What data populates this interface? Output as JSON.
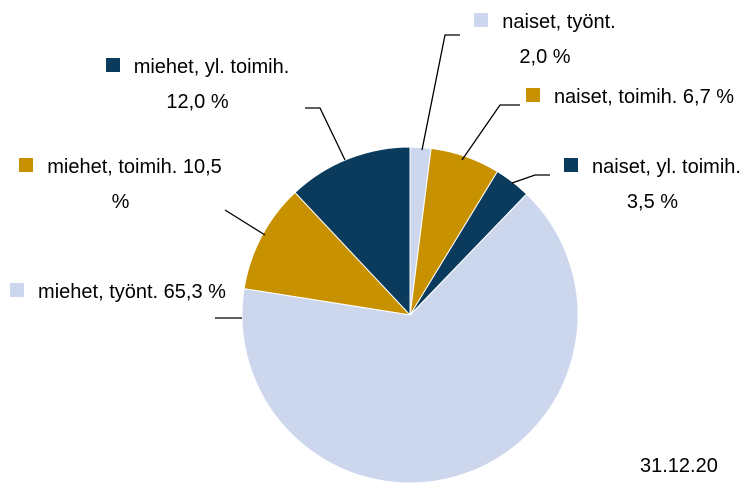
{
  "chart_data": {
    "type": "pie",
    "categories": [
      "naiset, työnt.",
      "naiset, toimih.",
      "naiset, yl. toimih.",
      "miehet, työnt.",
      "miehet, toimih.",
      "miehet, yl. toimih."
    ],
    "values": [
      2.0,
      6.7,
      3.5,
      65.3,
      10.5,
      12.0
    ],
    "value_labels": [
      "2,0 %",
      "6,7 %",
      "3,5 %",
      "65,3 %",
      "10,5 %",
      "12,0 %"
    ],
    "colors": [
      "#ccd7ee",
      "#c79100",
      "#0a3a5c",
      "#ccd7ee",
      "#c79100",
      "#0a3a5c"
    ],
    "footnote": "31.12.20"
  }
}
